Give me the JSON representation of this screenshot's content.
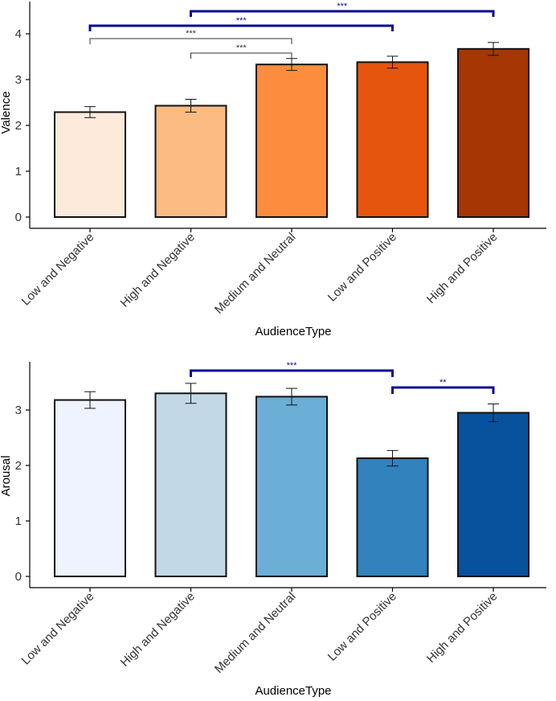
{
  "chart_data": [
    {
      "type": "bar",
      "title": "",
      "xlabel": "AudienceType",
      "ylabel": "Valence",
      "categories": [
        "Low and Negative",
        "High and Negative",
        "Medium and Neutral",
        "Low and Positive",
        "High and Positive"
      ],
      "values": [
        2.29,
        2.43,
        3.33,
        3.38,
        3.67
      ],
      "errors": [
        0.12,
        0.14,
        0.13,
        0.13,
        0.14
      ],
      "colors": [
        "#feeadb",
        "#fdbb84",
        "#fd8d3c",
        "#e6550d",
        "#a63603"
      ],
      "ylim": [
        0,
        4.35
      ],
      "yticks": [
        "0",
        "1",
        "2",
        "3",
        "4"
      ],
      "grid": false,
      "legend": "none",
      "significance": [
        {
          "from": 1,
          "to": 4,
          "label": "***",
          "color": "#0a0a96",
          "tier": 0
        },
        {
          "from": 0,
          "to": 3,
          "label": "***",
          "color": "#0a0a96",
          "tier": 1
        },
        {
          "from": 0,
          "to": 2,
          "label": "***",
          "color": "#333333",
          "tier": 2
        },
        {
          "from": 1,
          "to": 2,
          "label": "***",
          "color": "#333333",
          "tier": 3
        }
      ]
    },
    {
      "type": "bar",
      "title": "",
      "xlabel": "AudienceType",
      "ylabel": "Arousal",
      "categories": [
        "Low and Negative",
        "High and Negative",
        "Medium and Neutral",
        "Low and Positive",
        "High and Positive"
      ],
      "values": [
        3.18,
        3.3,
        3.24,
        2.13,
        2.95
      ],
      "errors": [
        0.15,
        0.18,
        0.15,
        0.14,
        0.16
      ],
      "colors": [
        "#eff3ff",
        "#c2d8e6",
        "#6baed6",
        "#3182bd",
        "#08519c"
      ],
      "ylim": [
        0,
        3.9
      ],
      "yticks": [
        "0",
        "1",
        "2",
        "3"
      ],
      "grid": false,
      "legend": "none",
      "significance": [
        {
          "from": 1,
          "to": 3,
          "label": "***",
          "color": "#0a0a96",
          "tier": 0
        },
        {
          "from": 3,
          "to": 4,
          "label": "**",
          "color": "#0a0a96",
          "tier": 1
        }
      ]
    }
  ]
}
